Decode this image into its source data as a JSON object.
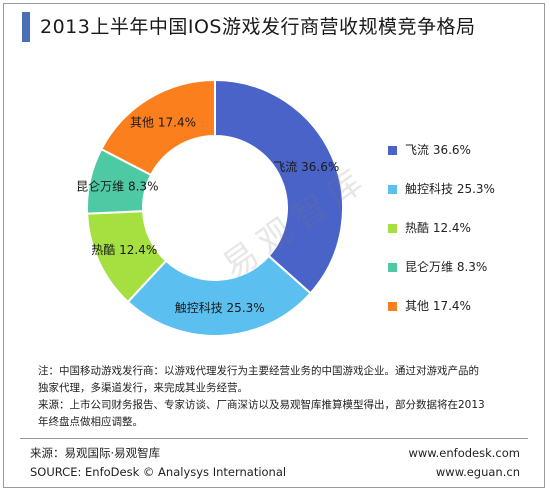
{
  "title": "2013上半年中国IOS游戏发行商营收规模竞争格局",
  "watermark": "易观智库",
  "chart_data": {
    "type": "pie",
    "donut": true,
    "title": "2013上半年中国IOS游戏发行商营收规模竞争格局",
    "legend_position": "right",
    "slices": [
      {
        "name": "飞流",
        "value": 36.6,
        "label": "飞流 36.6%",
        "color": "#4a63c8"
      },
      {
        "name": "触控科技",
        "value": 25.3,
        "label": "触控科技 25.3%",
        "color": "#5bc0ef"
      },
      {
        "name": "热酷",
        "value": 12.4,
        "label": "热酷 12.4%",
        "color": "#a6e040"
      },
      {
        "name": "昆仑万维",
        "value": 8.3,
        "label": "昆仑万维 8.3%",
        "color": "#4dc9a3"
      },
      {
        "name": "其他",
        "value": 17.4,
        "label": "其他 17.4%",
        "color": "#fc7f1e"
      }
    ]
  },
  "notes": {
    "line1": "注：中国移动游戏发行商：以游戏代理发行为主要经营业务的中国游戏企业。通过对游戏产品的",
    "line2": "独家代理，多渠道发行，来完成其业务经营。",
    "line3": "来源：上市公司财务报告、专家访谈、厂商深访以及易观智库推算模型得出，部分数据将在2013",
    "line4": "年终盘点做相应调整。"
  },
  "source": {
    "cn": "来源：易观国际·易观智库",
    "en": "SOURCE: EnfoDesk © Analysys International",
    "url1": "www.enfodesk.com",
    "url2": "www.eguan.cn"
  }
}
